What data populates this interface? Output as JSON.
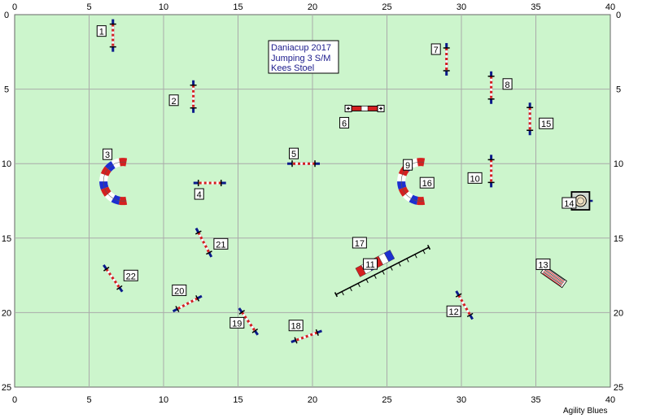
{
  "course": {
    "field_color": "#ccf5cc",
    "grid_color": "#aaaaaa",
    "x_range": [
      0,
      40
    ],
    "y_range": [
      0,
      25
    ],
    "x_ticks": [
      "0",
      "5",
      "10",
      "15",
      "20",
      "25",
      "30",
      "35",
      "40"
    ],
    "y_ticks": [
      "0",
      "5",
      "10",
      "15",
      "20",
      "25"
    ],
    "title_lines": [
      "Daniacup 2017",
      "Jumping 3 S/M",
      "Kees Stoel"
    ],
    "brand": "Agility Blues",
    "colors": {
      "pole_red": "#d42020",
      "pole_blue": "#1d2fd0",
      "wing": "#0a1a8a"
    }
  },
  "obstacles": [
    {
      "number": "1",
      "type": "jump",
      "x": 6.6,
      "y": 1.4,
      "angle": 0
    },
    {
      "number": "2",
      "type": "jump",
      "x": 12.0,
      "y": 5.5,
      "angle": 0
    },
    {
      "number": "3",
      "type": "tunnel",
      "x": 7.0,
      "y": 11.2,
      "open": "right"
    },
    {
      "number": "4",
      "type": "jump",
      "x": 13.1,
      "y": 11.3,
      "angle": 90
    },
    {
      "number": "5",
      "type": "jump",
      "x": 19.4,
      "y": 10.0,
      "angle": 90
    },
    {
      "number": "6",
      "type": "long-jump",
      "x": 23.5,
      "y": 6.3
    },
    {
      "number": "7",
      "type": "jump",
      "x": 29.0,
      "y": 3.0,
      "angle": 0
    },
    {
      "number": "8",
      "type": "jump",
      "x": 32.0,
      "y": 4.9,
      "angle": 0
    },
    {
      "number": "9",
      "type": "tunnel",
      "x": 27.0,
      "y": 11.2,
      "open": "right"
    },
    {
      "number": "10",
      "type": "jump",
      "x": 32.0,
      "y": 10.5,
      "angle": 0
    },
    {
      "number": "11",
      "type": "dogwalk",
      "x": 24.7,
      "y": 17.2,
      "angle": -27
    },
    {
      "number": "12",
      "type": "jump",
      "x": 30.2,
      "y": 19.5,
      "angle": -30
    },
    {
      "number": "13",
      "type": "weave",
      "x": 36.2,
      "y": 17.6
    },
    {
      "number": "14",
      "type": "table",
      "x": 38.0,
      "y": 12.5
    },
    {
      "number": "15",
      "type": "jump",
      "x": 34.6,
      "y": 7.0,
      "angle": 0
    },
    {
      "number": "16",
      "type": "tunnel-label",
      "x": 27.8,
      "y": 11.2
    },
    {
      "number": "17",
      "type": "tube",
      "x": 24.2,
      "y": 16.7,
      "angle": -28
    },
    {
      "number": "18",
      "type": "jump",
      "x": 19.6,
      "y": 21.6,
      "angle": 70
    },
    {
      "number": "19",
      "type": "jump",
      "x": 15.7,
      "y": 20.6,
      "angle": -35
    },
    {
      "number": "20",
      "type": "jump",
      "x": 11.6,
      "y": 19.4,
      "angle": 62
    },
    {
      "number": "21",
      "type": "jump",
      "x": 12.7,
      "y": 15.3,
      "angle": -28
    },
    {
      "number": "22",
      "type": "jump",
      "x": 6.6,
      "y": 17.7,
      "angle": -35
    }
  ]
}
